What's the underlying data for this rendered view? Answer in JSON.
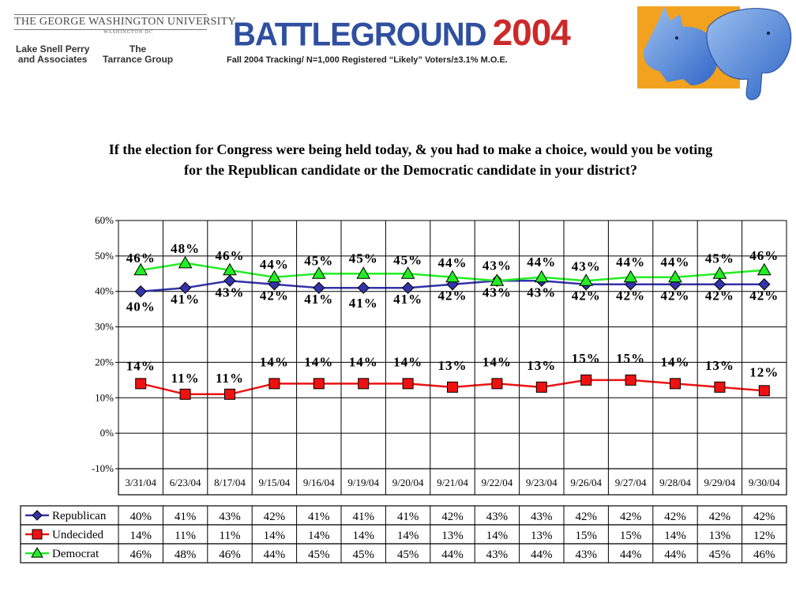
{
  "header": {
    "university": "THE GEORGE WASHINGTON UNIVERSITY",
    "university_sub": "WASHINGTON DC",
    "partner_left": "Lake Snell Perry and Associates",
    "partner_left_line1": "Lake Snell Perry",
    "partner_left_line2": "and Associates",
    "partner_right_line1": "The",
    "partner_right_line2": "Tarrance Group",
    "title_word": "BATTLEGROUND",
    "title_year": "2004",
    "subtitle": "Fall 2004 Tracking/ N=1,000 Registered “Likely” Voters/±3.1% M.O.E."
  },
  "question": {
    "line1": "If the election for Congress were being held today, & you had to make a choice, would you be voting",
    "line2": "for the Republican candidate or the Democratic candidate in your district?"
  },
  "chart_data": {
    "type": "line",
    "title": "",
    "xlabel": "",
    "ylabel": "",
    "ylim": [
      -10,
      60
    ],
    "yticks": [
      -10,
      0,
      10,
      20,
      30,
      40,
      50,
      60
    ],
    "ytick_labels": [
      "-10%",
      "0%",
      "10%",
      "20%",
      "30%",
      "40%",
      "50%",
      "60%"
    ],
    "grid": true,
    "categories": [
      "3/31/04",
      "6/23/04",
      "8/17/04",
      "9/15/04",
      "9/16/04",
      "9/19/04",
      "9/20/04",
      "9/21/04",
      "9/22/04",
      "9/23/04",
      "9/26/04",
      "9/27/04",
      "9/28/04",
      "9/29/04",
      "9/30/04"
    ],
    "series": [
      {
        "name": "Republican",
        "color": "#3333aa",
        "marker": "diamond",
        "values": [
          40,
          41,
          43,
          42,
          41,
          41,
          41,
          42,
          43,
          43,
          42,
          42,
          42,
          42,
          42
        ]
      },
      {
        "name": "Undecided",
        "color": "#ee1111",
        "marker": "square",
        "values": [
          14,
          11,
          11,
          14,
          14,
          14,
          14,
          13,
          14,
          13,
          15,
          15,
          14,
          13,
          12
        ]
      },
      {
        "name": "Democrat",
        "color": "#22ee22",
        "marker": "triangle",
        "values": [
          46,
          48,
          46,
          44,
          45,
          45,
          45,
          44,
          43,
          44,
          43,
          44,
          44,
          45,
          46
        ]
      }
    ],
    "data_table": true
  }
}
